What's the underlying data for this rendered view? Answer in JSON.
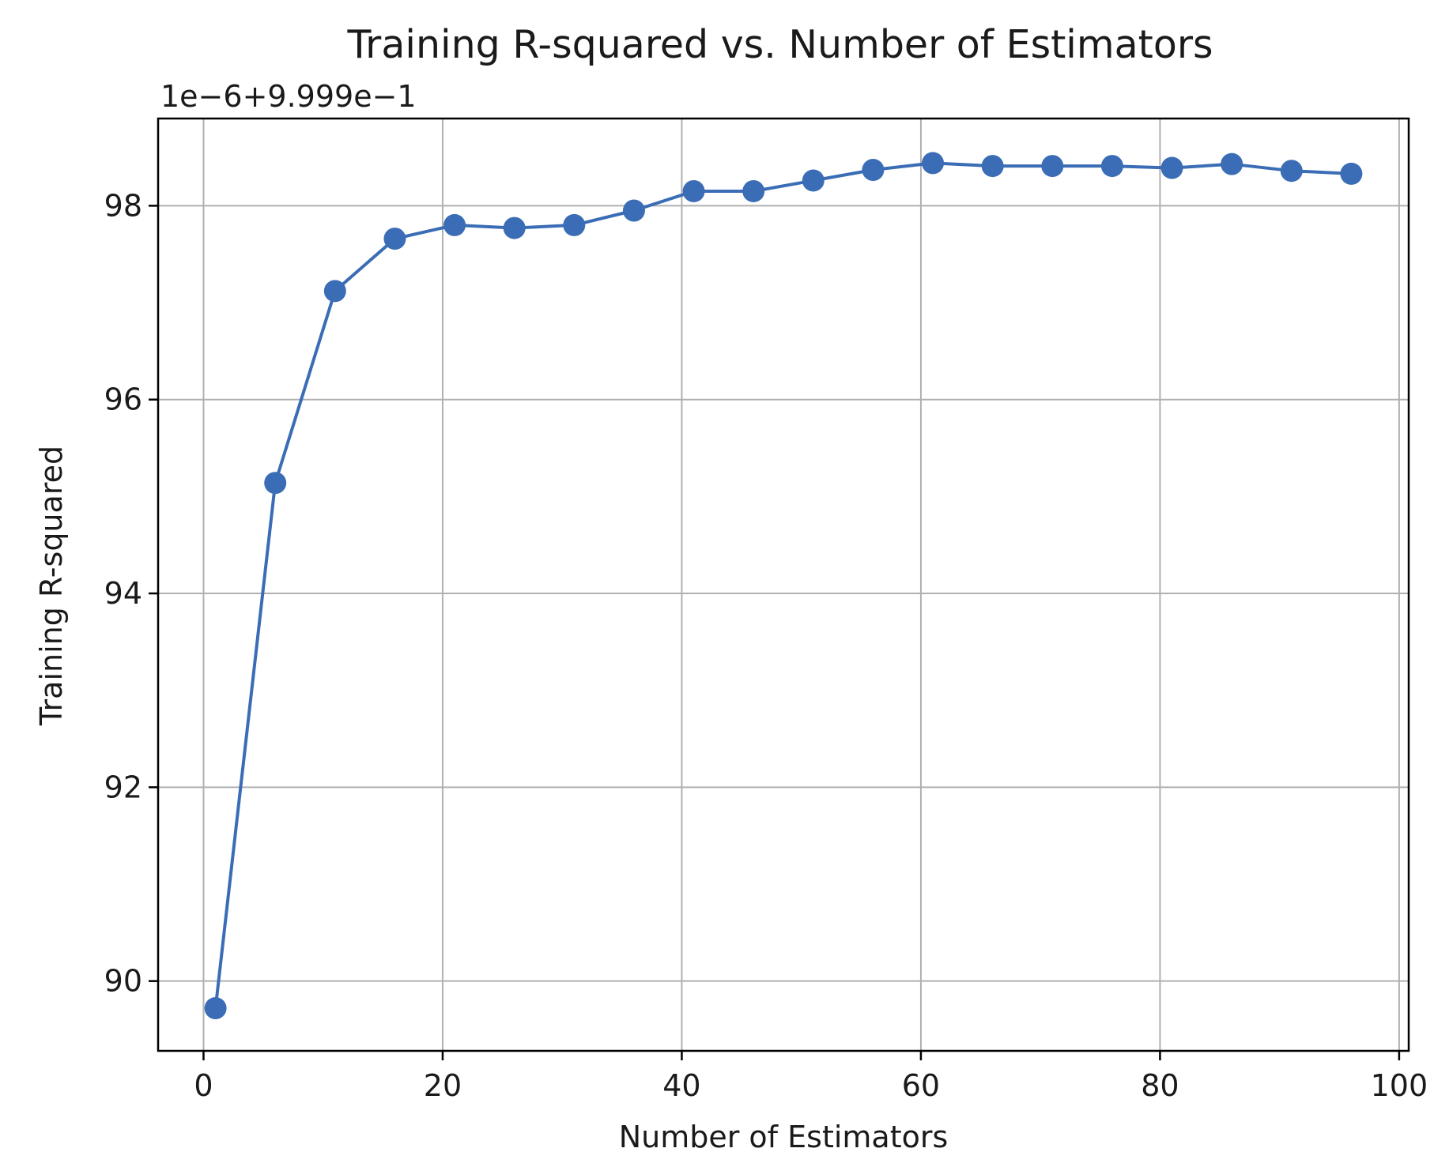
{
  "chart_data": {
    "type": "line",
    "title": "Training R-squared vs. Number of Estimators",
    "xlabel": "Number of Estimators",
    "ylabel": "Training R-squared",
    "y_offset_label": "1e−6+9.999e−1",
    "xlim": [
      -3.8,
      100.8
    ],
    "ylim": [
      89.28,
      98.9
    ],
    "xticks": [
      0,
      20,
      40,
      60,
      80,
      100
    ],
    "xtick_labels": [
      "0",
      "20",
      "40",
      "60",
      "80",
      "100"
    ],
    "yticks": [
      90,
      92,
      94,
      96,
      98
    ],
    "ytick_labels": [
      "90",
      "92",
      "94",
      "96",
      "98"
    ],
    "grid": true,
    "series_color": "#3a6db5",
    "series": [
      {
        "x": [
          1,
          6,
          11,
          16,
          21,
          26,
          31,
          36,
          41,
          46,
          51,
          56,
          61,
          66,
          71,
          76,
          81,
          86,
          91,
          96
        ],
        "y": [
          89.72,
          95.14,
          97.12,
          97.66,
          97.8,
          97.77,
          97.8,
          97.95,
          98.15,
          98.15,
          98.26,
          98.37,
          98.44,
          98.41,
          98.41,
          98.41,
          98.39,
          98.43,
          98.36,
          98.33
        ]
      }
    ]
  }
}
